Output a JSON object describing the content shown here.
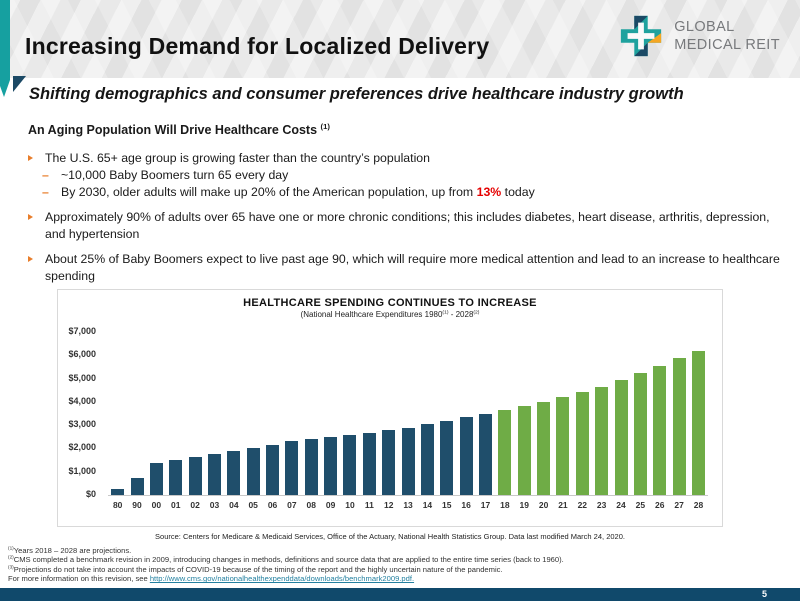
{
  "header": {
    "title": "Increasing Demand for Localized Delivery",
    "subtitle": "Shifting demographics and consumer preferences drive healthcare industry growth",
    "logo": {
      "name_line1": "GLOBAL",
      "name_line2": "MEDICAL REIT"
    }
  },
  "content": {
    "heading": "An Aging Population Will Drive Healthcare Costs",
    "heading_sup": "(1)",
    "bullets": [
      {
        "text": "The U.S. 65+ age group is growing faster than the country’s population",
        "subs": [
          {
            "text": "~10,000 Baby Boomers turn 65 every day"
          },
          {
            "pre": "By 2030, older adults will make up 20% of the American population, up from ",
            "highlight": "13%",
            "post": " today"
          }
        ]
      },
      {
        "text": "Approximately 90% of adults over 65 have one or more chronic conditions; this includes diabetes, heart disease, arthritis, depression, and hypertension"
      },
      {
        "text": "About 25% of Baby Boomers expect to live past age 90, which will require more medical attention and lead to an increase to healthcare spending"
      }
    ]
  },
  "chart_data": {
    "type": "bar",
    "title": "HEALTHCARE SPENDING CONTINUES TO INCREASE",
    "subtitle_parts": {
      "p1": "(National Healthcare Expenditures 1980",
      "s1": "(1)",
      "p2": " - 2028",
      "s2": "(2)"
    },
    "categories": [
      "80",
      "90",
      "00",
      "01",
      "02",
      "03",
      "04",
      "05",
      "06",
      "07",
      "08",
      "09",
      "10",
      "11",
      "12",
      "13",
      "14",
      "15",
      "16",
      "17",
      "18",
      "19",
      "20",
      "21",
      "22",
      "23",
      "24",
      "25",
      "26",
      "27",
      "28"
    ],
    "values": [
      260,
      710,
      1370,
      1490,
      1630,
      1770,
      1900,
      2020,
      2160,
      2300,
      2400,
      2500,
      2590,
      2680,
      2780,
      2880,
      3030,
      3200,
      3350,
      3490,
      3650,
      3820,
      4010,
      4210,
      4420,
      4660,
      4930,
      5230,
      5560,
      5890,
      6190
    ],
    "ylim": [
      0,
      7000
    ],
    "y_ticks": [
      {
        "label": "$0",
        "value": 0
      },
      {
        "label": "$1,000",
        "value": 1000
      },
      {
        "label": "$2,000",
        "value": 2000
      },
      {
        "label": "$3,000",
        "value": 3000
      },
      {
        "label": "$4,000",
        "value": 4000
      },
      {
        "label": "$5,000",
        "value": 5000
      },
      {
        "label": "$6,000",
        "value": 6000
      },
      {
        "label": "$7,000",
        "value": 7000
      }
    ],
    "actual_color": "#1F4E6B",
    "projected_color": "#6FAC46",
    "projected_start_category": "18",
    "projected_from_index": 20,
    "grid": "off",
    "legend_position": "none"
  },
  "source": "Source: Centers for Medicare & Medicaid Services, Office of the Actuary, National Health Statistics Group. Data last modified March 24, 2020.",
  "footnotes": [
    {
      "sup": "(1)",
      "text": "Years 2018 – 2028 are projections."
    },
    {
      "sup": "(2)",
      "text": "CMS completed a benchmark revision in 2009, introducing changes in methods, definitions and source data that are  applied to the entire time series (back to 1960)."
    },
    {
      "sup": "(3)",
      "text": "Projections do not take into account the impacts of COVID-19 because of the timing of the report and the highly uncertain nature of the pandemic."
    },
    {
      "sup": "",
      "text": "For more information on this revision, see ",
      "link": "http://www.cms.gov/nationalhealthexpenddata/downloads/benchmark2009.pdf."
    }
  ],
  "footer": {
    "page_number": "5"
  },
  "colors": {
    "accent_teal": "#16A0A0",
    "accent_navy": "#1B4965",
    "accent_orange": "#E87E2B",
    "highlight_red": "#E50000",
    "bar_actual": "#1F4E6B",
    "bar_projected": "#6FAC46",
    "footer_bar": "#10496B",
    "link": "#2380A0"
  }
}
